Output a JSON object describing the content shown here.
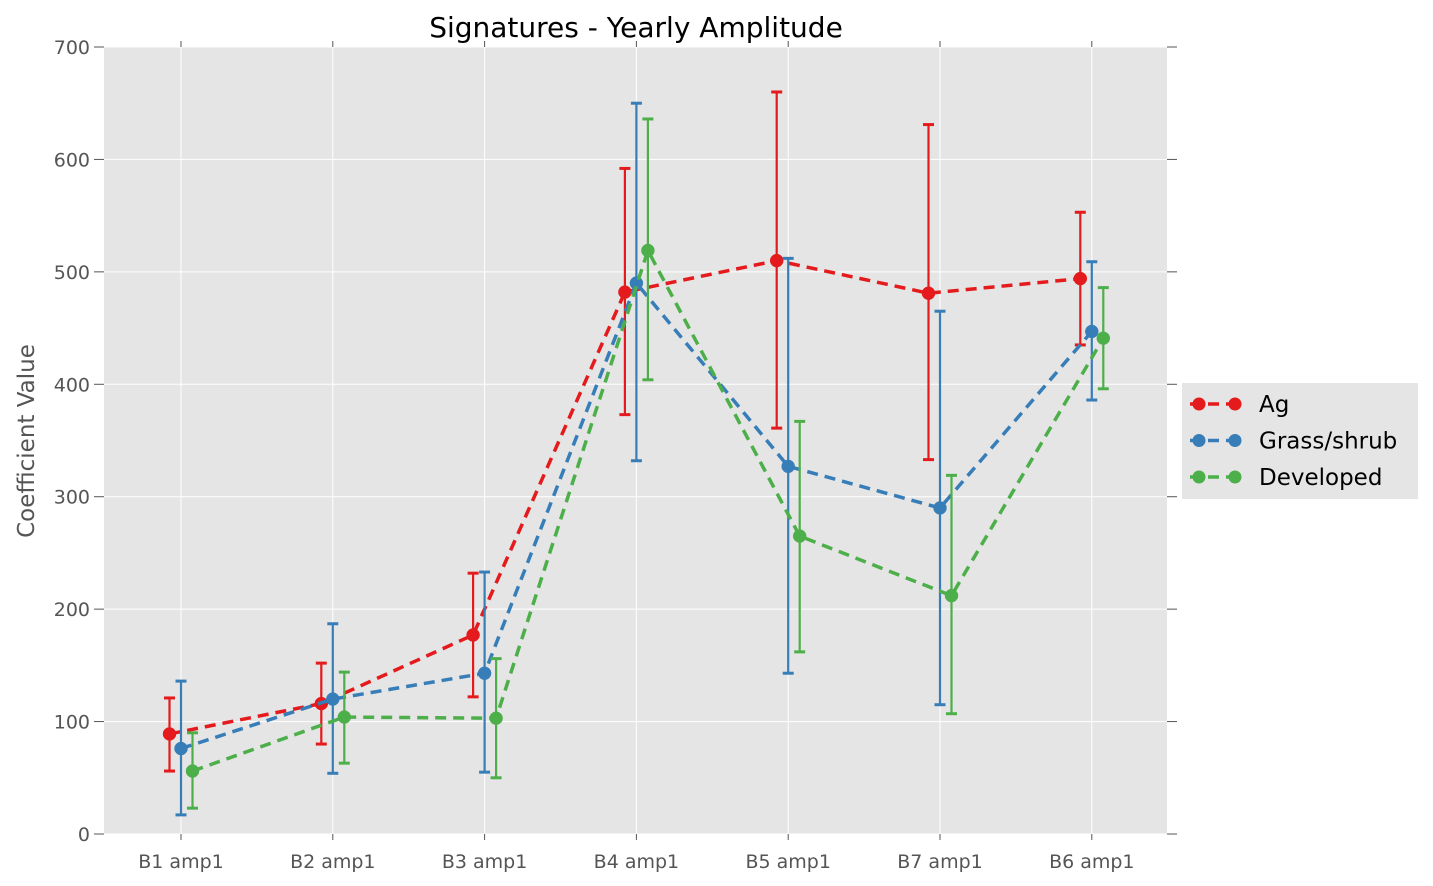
{
  "chart_data": {
    "type": "line",
    "title": "Signatures - Yearly Amplitude",
    "xlabel": "",
    "ylabel": "Coefficient Value",
    "categories": [
      "B1 amp1",
      "B2 amp1",
      "B3 amp1",
      "B4 amp1",
      "B5 amp1",
      "B7 amp1",
      "B6 amp1"
    ],
    "ylim": [
      0,
      700
    ],
    "yticks": [
      0,
      100,
      200,
      300,
      400,
      500,
      600,
      700
    ],
    "grid": true,
    "legend_position": "right",
    "line_style": "dashed",
    "series": [
      {
        "name": "Ag",
        "color": "#e41a1c",
        "values": [
          89,
          116,
          177,
          482,
          510,
          481,
          494
        ],
        "err_low": [
          56,
          80,
          122,
          373,
          361,
          333,
          435
        ],
        "err_high": [
          121,
          152,
          232,
          592,
          660,
          631,
          553
        ]
      },
      {
        "name": "Grass/shrub",
        "color": "#377eb8",
        "values": [
          76,
          120,
          143,
          490,
          327,
          290,
          447
        ],
        "err_low": [
          17,
          54,
          55,
          332,
          143,
          115,
          386
        ],
        "err_high": [
          136,
          187,
          233,
          650,
          512,
          465,
          509
        ]
      },
      {
        "name": "Developed",
        "color": "#4daf4a",
        "values": [
          56,
          104,
          103,
          519,
          265,
          212,
          441
        ],
        "err_low": [
          23,
          63,
          50,
          404,
          162,
          107,
          396
        ],
        "err_high": [
          90,
          144,
          156,
          636,
          367,
          319,
          486
        ]
      }
    ]
  }
}
